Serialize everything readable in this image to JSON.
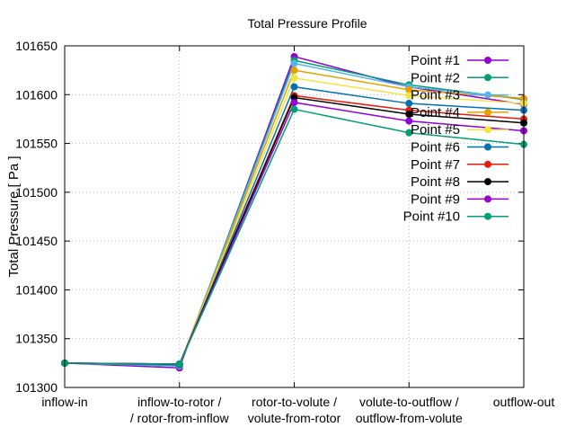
{
  "chart_data": {
    "type": "line",
    "title": "Total Pressure Profile",
    "xlabel": "",
    "ylabel": "Total Pressure [ Pa ]",
    "ylim": [
      101300,
      101650
    ],
    "yticks": [
      101300,
      101350,
      101400,
      101450,
      101500,
      101550,
      101600,
      101650
    ],
    "ytick_labels": [
      "101300",
      "101350",
      "101400",
      "101450",
      "101500",
      "101550",
      "101600",
      "101650"
    ],
    "categories": [
      [
        "inflow-in"
      ],
      [
        "inflow-to-rotor /",
        "/ rotor-from-inflow"
      ],
      [
        "rotor-to-volute /",
        "volute-from-rotor"
      ],
      [
        "volute-to-outflow /",
        "outflow-from-volute"
      ],
      [
        "outflow-out"
      ]
    ],
    "grid": true,
    "legend_position": "top-right",
    "series": [
      {
        "name": "Point #1",
        "color": "#9400d3",
        "values": [
          101325,
          101320,
          101639,
          101608,
          101590
        ]
      },
      {
        "name": "Point #2",
        "color": "#009e73",
        "values": [
          101325,
          101322,
          101635,
          101610,
          101595
        ]
      },
      {
        "name": "Point #3",
        "color": "#56b4e9",
        "values": [
          101325,
          101322,
          101632,
          101608,
          101596
        ]
      },
      {
        "name": "Point #4",
        "color": "#e69f00",
        "values": [
          101325,
          101323,
          101625,
          101605,
          101596
        ]
      },
      {
        "name": "Point #5",
        "color": "#f0e442",
        "values": [
          101325,
          101323,
          101617,
          101599,
          101591
        ]
      },
      {
        "name": "Point #6",
        "color": "#0072b2",
        "values": [
          101325,
          101323,
          101608,
          101591,
          101584
        ]
      },
      {
        "name": "Point #7",
        "color": "#e51e10",
        "values": [
          101325,
          101324,
          101599,
          101584,
          101575
        ]
      },
      {
        "name": "Point #8",
        "color": "#000000",
        "values": [
          101325,
          101324,
          101597,
          101580,
          101571
        ]
      },
      {
        "name": "Point #9",
        "color": "#9400d3",
        "values": [
          101325,
          101324,
          101592,
          101573,
          101563
        ]
      },
      {
        "name": "Point #10",
        "color": "#009e73",
        "values": [
          101325,
          101324,
          101585,
          101561,
          101549
        ]
      }
    ]
  }
}
